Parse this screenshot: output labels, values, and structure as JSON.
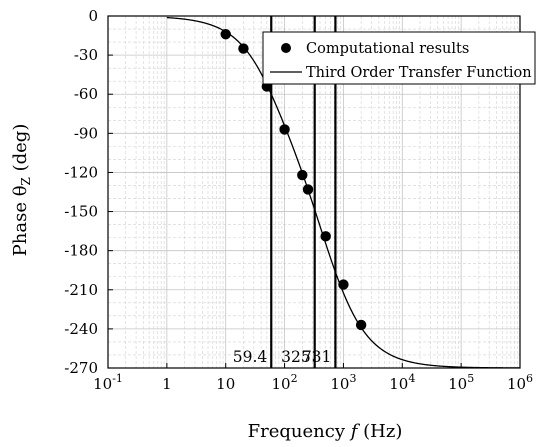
{
  "chart_data": {
    "type": "line",
    "xscale": "log",
    "xlim": [
      0.1,
      1000000
    ],
    "ylim": [
      -270,
      0
    ],
    "grid": true,
    "legend_position": "top-right",
    "xlabel_main": "Frequency ",
    "xlabel_var": "f",
    "xlabel_unit": " (Hz)",
    "ylabel_main": "Phase θ",
    "ylabel_sub": "Z",
    "ylabel_unit": " (deg)",
    "x_tick_labels": [
      {
        "value": 0.1,
        "base": "10",
        "exp": "-1"
      },
      {
        "value": 1,
        "base": "1",
        "exp": ""
      },
      {
        "value": 10,
        "base": "10",
        "exp": ""
      },
      {
        "value": 100,
        "base": "10",
        "exp": "2"
      },
      {
        "value": 1000,
        "base": "10",
        "exp": "3"
      },
      {
        "value": 10000,
        "base": "10",
        "exp": "4"
      },
      {
        "value": 100000,
        "base": "10",
        "exp": "5"
      },
      {
        "value": 1000000,
        "base": "10",
        "exp": "6"
      }
    ],
    "y_ticks": [
      {
        "value": 0,
        "label": "0"
      },
      {
        "value": -30,
        "label": "-30"
      },
      {
        "value": -60,
        "label": "-60"
      },
      {
        "value": -90,
        "label": "-90"
      },
      {
        "value": -120,
        "label": "-120"
      },
      {
        "value": -150,
        "label": "-150"
      },
      {
        "value": -180,
        "label": "-180"
      },
      {
        "value": -210,
        "label": "-210"
      },
      {
        "value": -240,
        "label": "-240"
      },
      {
        "value": -270,
        "label": "-270"
      }
    ],
    "series": [
      {
        "name": "Computational results",
        "kind": "scatter",
        "points": [
          [
            10,
            -14
          ],
          [
            20,
            -25
          ],
          [
            50,
            -54
          ],
          [
            100,
            -87
          ],
          [
            200,
            -122
          ],
          [
            250,
            -133
          ],
          [
            500,
            -169
          ],
          [
            1000,
            -206
          ],
          [
            2000,
            -237
          ]
        ]
      },
      {
        "name": "Third Order Transfer Function",
        "kind": "line",
        "poles": [
          59.4,
          325,
          731
        ]
      }
    ],
    "vertical_markers": [
      {
        "x": 59.4,
        "label": "59.4"
      },
      {
        "x": 325,
        "label": "325"
      },
      {
        "x": 731,
        "label": "731"
      }
    ]
  }
}
